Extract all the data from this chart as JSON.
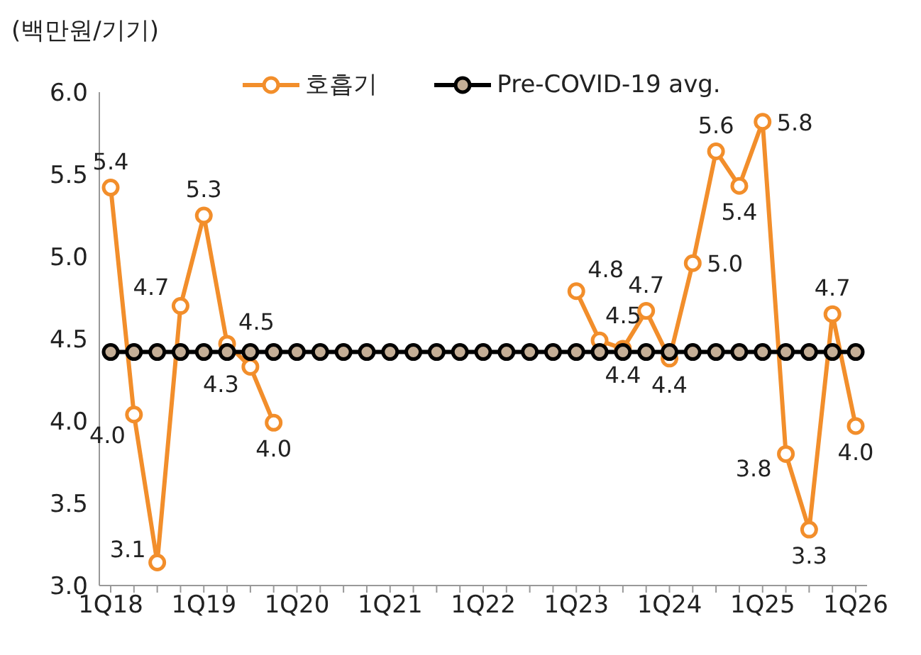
{
  "chart_data": {
    "type": "line",
    "ylabel": "(백만원/기기)",
    "categories": [
      "1Q18",
      null,
      null,
      null,
      "1Q19",
      null,
      null,
      null,
      "1Q20",
      null,
      null,
      null,
      "1Q21",
      null,
      null,
      null,
      "1Q22",
      null,
      null,
      null,
      "1Q23",
      null,
      null,
      null,
      "1Q24",
      null,
      null,
      null,
      "1Q25",
      null,
      null,
      null,
      "1Q26"
    ],
    "series": [
      {
        "name": "호흡기",
        "color": "#f28e2b",
        "values": [
          5.42,
          4.04,
          3.14,
          4.7,
          5.25,
          4.47,
          4.33,
          3.99,
          null,
          null,
          null,
          null,
          null,
          null,
          null,
          null,
          null,
          null,
          null,
          null,
          4.79,
          4.49,
          4.44,
          4.67,
          4.38,
          4.96,
          5.64,
          5.43,
          5.82,
          3.8,
          3.34,
          4.65,
          3.97
        ],
        "value_labels": [
          "5.4",
          "4.0",
          "3.1",
          "4.7",
          "5.3",
          "4.5",
          "4.3",
          "4.0",
          null,
          null,
          null,
          null,
          null,
          null,
          null,
          null,
          null,
          null,
          null,
          null,
          "4.8",
          "4.5",
          "4.4",
          "4.7",
          "4.4",
          "5.0",
          "5.6",
          "5.4",
          "5.8",
          "3.8",
          "3.3",
          "4.7",
          "4.0"
        ]
      },
      {
        "name": "Pre-COVID-19 avg.",
        "color": "#000000",
        "values": [
          4.42,
          4.42,
          4.42,
          4.42,
          4.42,
          4.42,
          4.42,
          4.42,
          4.42,
          4.42,
          4.42,
          4.42,
          4.42,
          4.42,
          4.42,
          4.42,
          4.42,
          4.42,
          4.42,
          4.42,
          4.42,
          4.42,
          4.42,
          4.42,
          4.42,
          4.42,
          4.42,
          4.42,
          4.42,
          4.42,
          4.42,
          4.42,
          4.42
        ]
      }
    ],
    "ylim": [
      3,
      6
    ],
    "yticks": [
      {
        "value": 3,
        "label": "3.0"
      },
      {
        "value": 3.5,
        "label": "3.5"
      },
      {
        "value": 4,
        "label": "4.0"
      },
      {
        "value": 4.5,
        "label": "4.5"
      },
      {
        "value": 5,
        "label": "5.0"
      },
      {
        "value": 5.5,
        "label": "5.5"
      },
      {
        "value": 6,
        "label": "6.0"
      }
    ],
    "grid": false,
    "legend": "top",
    "marker": "circle",
    "line_style": "solid"
  }
}
